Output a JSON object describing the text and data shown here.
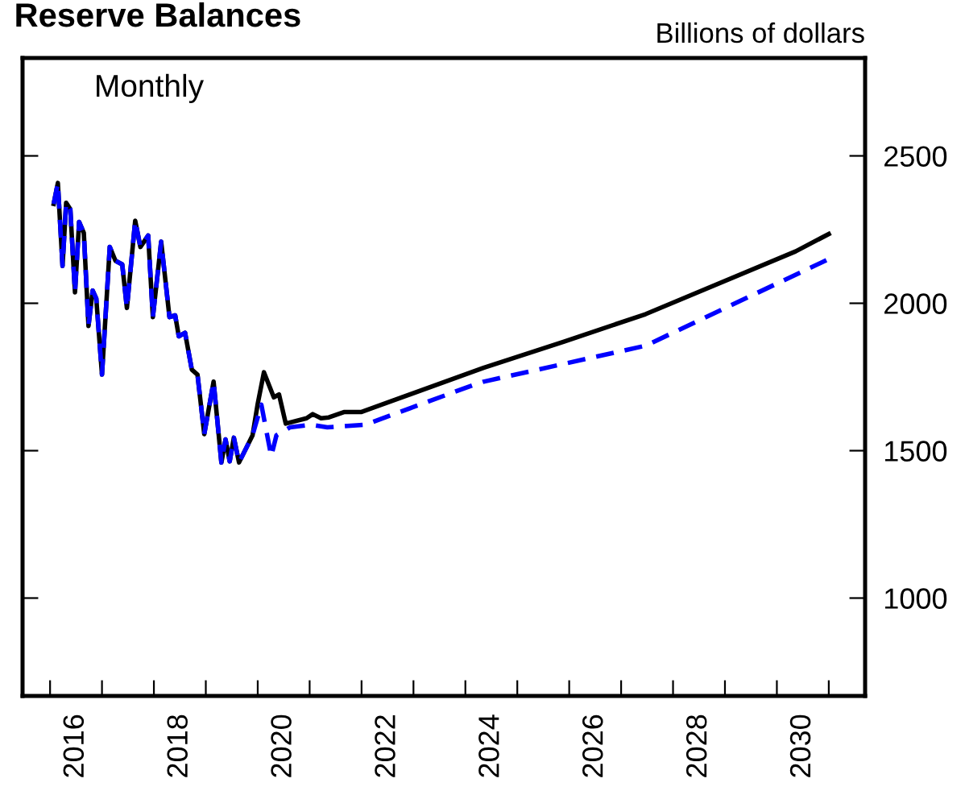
{
  "chart_data": {
    "type": "line",
    "title": "Reserve Balances",
    "ylabel": "Billions of dollars",
    "annotations": [
      "Monthly"
    ],
    "xlim": [
      2015.47,
      2031.7
    ],
    "ylim": [
      668,
      2832
    ],
    "xticks": [
      {
        "value": 2016,
        "label": null
      },
      {
        "value": 2017,
        "label": null
      },
      {
        "value": 2018,
        "label": null
      },
      {
        "value": 2019,
        "label": null
      },
      {
        "value": 2020,
        "label": null
      },
      {
        "value": 2021,
        "label": null
      },
      {
        "value": 2022,
        "label": null
      },
      {
        "value": 2023,
        "label": null
      },
      {
        "value": 2024,
        "label": null
      },
      {
        "value": 2025,
        "label": null
      },
      {
        "value": 2026,
        "label": null
      },
      {
        "value": 2027,
        "label": null
      },
      {
        "value": 2028,
        "label": null
      },
      {
        "value": 2029,
        "label": null
      },
      {
        "value": 2030,
        "label": null
      },
      {
        "value": 2031,
        "label": null
      },
      {
        "value": 2016.5,
        "label": "2016"
      },
      {
        "value": 2018.5,
        "label": "2018"
      },
      {
        "value": 2020.5,
        "label": "2020"
      },
      {
        "value": 2022.5,
        "label": "2022"
      },
      {
        "value": 2024.5,
        "label": "2024"
      },
      {
        "value": 2026.5,
        "label": "2026"
      },
      {
        "value": 2028.5,
        "label": "2028"
      },
      {
        "value": 2030.5,
        "label": "2030"
      }
    ],
    "yticks": [
      1000,
      1500,
      2000,
      2500
    ],
    "grid": false,
    "legend": false,
    "series": [
      {
        "color": "#000000",
        "line_style": "solid",
        "x": [
          2016.07,
          2016.15,
          2016.24,
          2016.31,
          2016.39,
          2016.48,
          2016.56,
          2016.65,
          2016.74,
          2016.82,
          2016.89,
          2017.0,
          2017.15,
          2017.26,
          2017.39,
          2017.48,
          2017.64,
          2017.74,
          2017.89,
          2017.98,
          2018.14,
          2018.3,
          2018.41,
          2018.48,
          2018.6,
          2018.73,
          2018.84,
          2018.97,
          2019.15,
          2019.3,
          2019.38,
          2019.46,
          2019.54,
          2019.64,
          2019.9,
          2020.0,
          2020.12,
          2020.31,
          2020.41,
          2020.54,
          2020.94,
          2021.06,
          2021.22,
          2021.37,
          2021.66,
          2021.99,
          2024.35,
          2025.9,
          2027.47,
          2030.36,
          2031.0
        ],
        "values": [
          2337,
          2408,
          2127,
          2341,
          2319,
          2037,
          2276,
          2239,
          1923,
          2043,
          2016,
          1758,
          2191,
          2144,
          2132,
          1984,
          2280,
          2191,
          2230,
          1953,
          2209,
          1953,
          1959,
          1888,
          1900,
          1775,
          1758,
          1556,
          1734,
          1460,
          1538,
          1464,
          1544,
          1460,
          1552,
          1659,
          1766,
          1681,
          1691,
          1592,
          1610,
          1624,
          1610,
          1613,
          1631,
          1631,
          1781,
          1870,
          1963,
          2176,
          2235
        ]
      },
      {
        "color": "#0000ff",
        "line_style": "dashed",
        "x": [
          2016.07,
          2016.15,
          2016.24,
          2016.31,
          2016.39,
          2016.48,
          2016.56,
          2016.65,
          2016.74,
          2016.82,
          2016.89,
          2017.0,
          2017.15,
          2017.26,
          2017.39,
          2017.48,
          2017.64,
          2017.74,
          2017.89,
          2017.98,
          2018.14,
          2018.3,
          2018.41,
          2018.48,
          2018.6,
          2018.73,
          2018.84,
          2018.97,
          2019.15,
          2019.3,
          2019.38,
          2019.46,
          2019.54,
          2019.64,
          2019.9,
          2020.07,
          2020.26,
          2020.36,
          2020.62,
          2021.03,
          2021.34,
          2022.07,
          2024.14,
          2024.35,
          2027.47,
          2031.0
        ],
        "values": [
          2337,
          2408,
          2127,
          2341,
          2319,
          2037,
          2276,
          2239,
          1923,
          2043,
          2016,
          1758,
          2191,
          2144,
          2132,
          1984,
          2280,
          2191,
          2230,
          1953,
          2209,
          1953,
          1959,
          1888,
          1900,
          1775,
          1758,
          1556,
          1734,
          1460,
          1538,
          1464,
          1544,
          1460,
          1552,
          1656,
          1481,
          1552,
          1579,
          1588,
          1579,
          1588,
          1722,
          1734,
          1856,
          2150
        ]
      }
    ]
  }
}
